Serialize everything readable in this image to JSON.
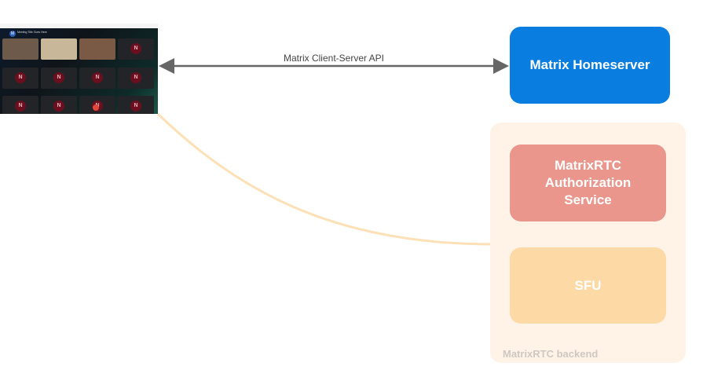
{
  "client": {
    "meeting_title": "Meeting Title Goes Here",
    "avatar_letter": "M",
    "tile_letter": "N"
  },
  "edges": {
    "client_server_label": "Matrix Client-Server API"
  },
  "nodes": {
    "homeserver": "Matrix Homeserver",
    "auth_service": "MatrixRTC Authorization Service",
    "sfu": "SFU",
    "backend_group": "MatrixRTC backend"
  },
  "colors": {
    "homeserver": "#0a7ee0",
    "auth": "#ea968c",
    "sfu": "#fdd9a6",
    "backend": "#fff3e8",
    "livekit_link": "#fde0b6",
    "arrow": "#666666"
  }
}
